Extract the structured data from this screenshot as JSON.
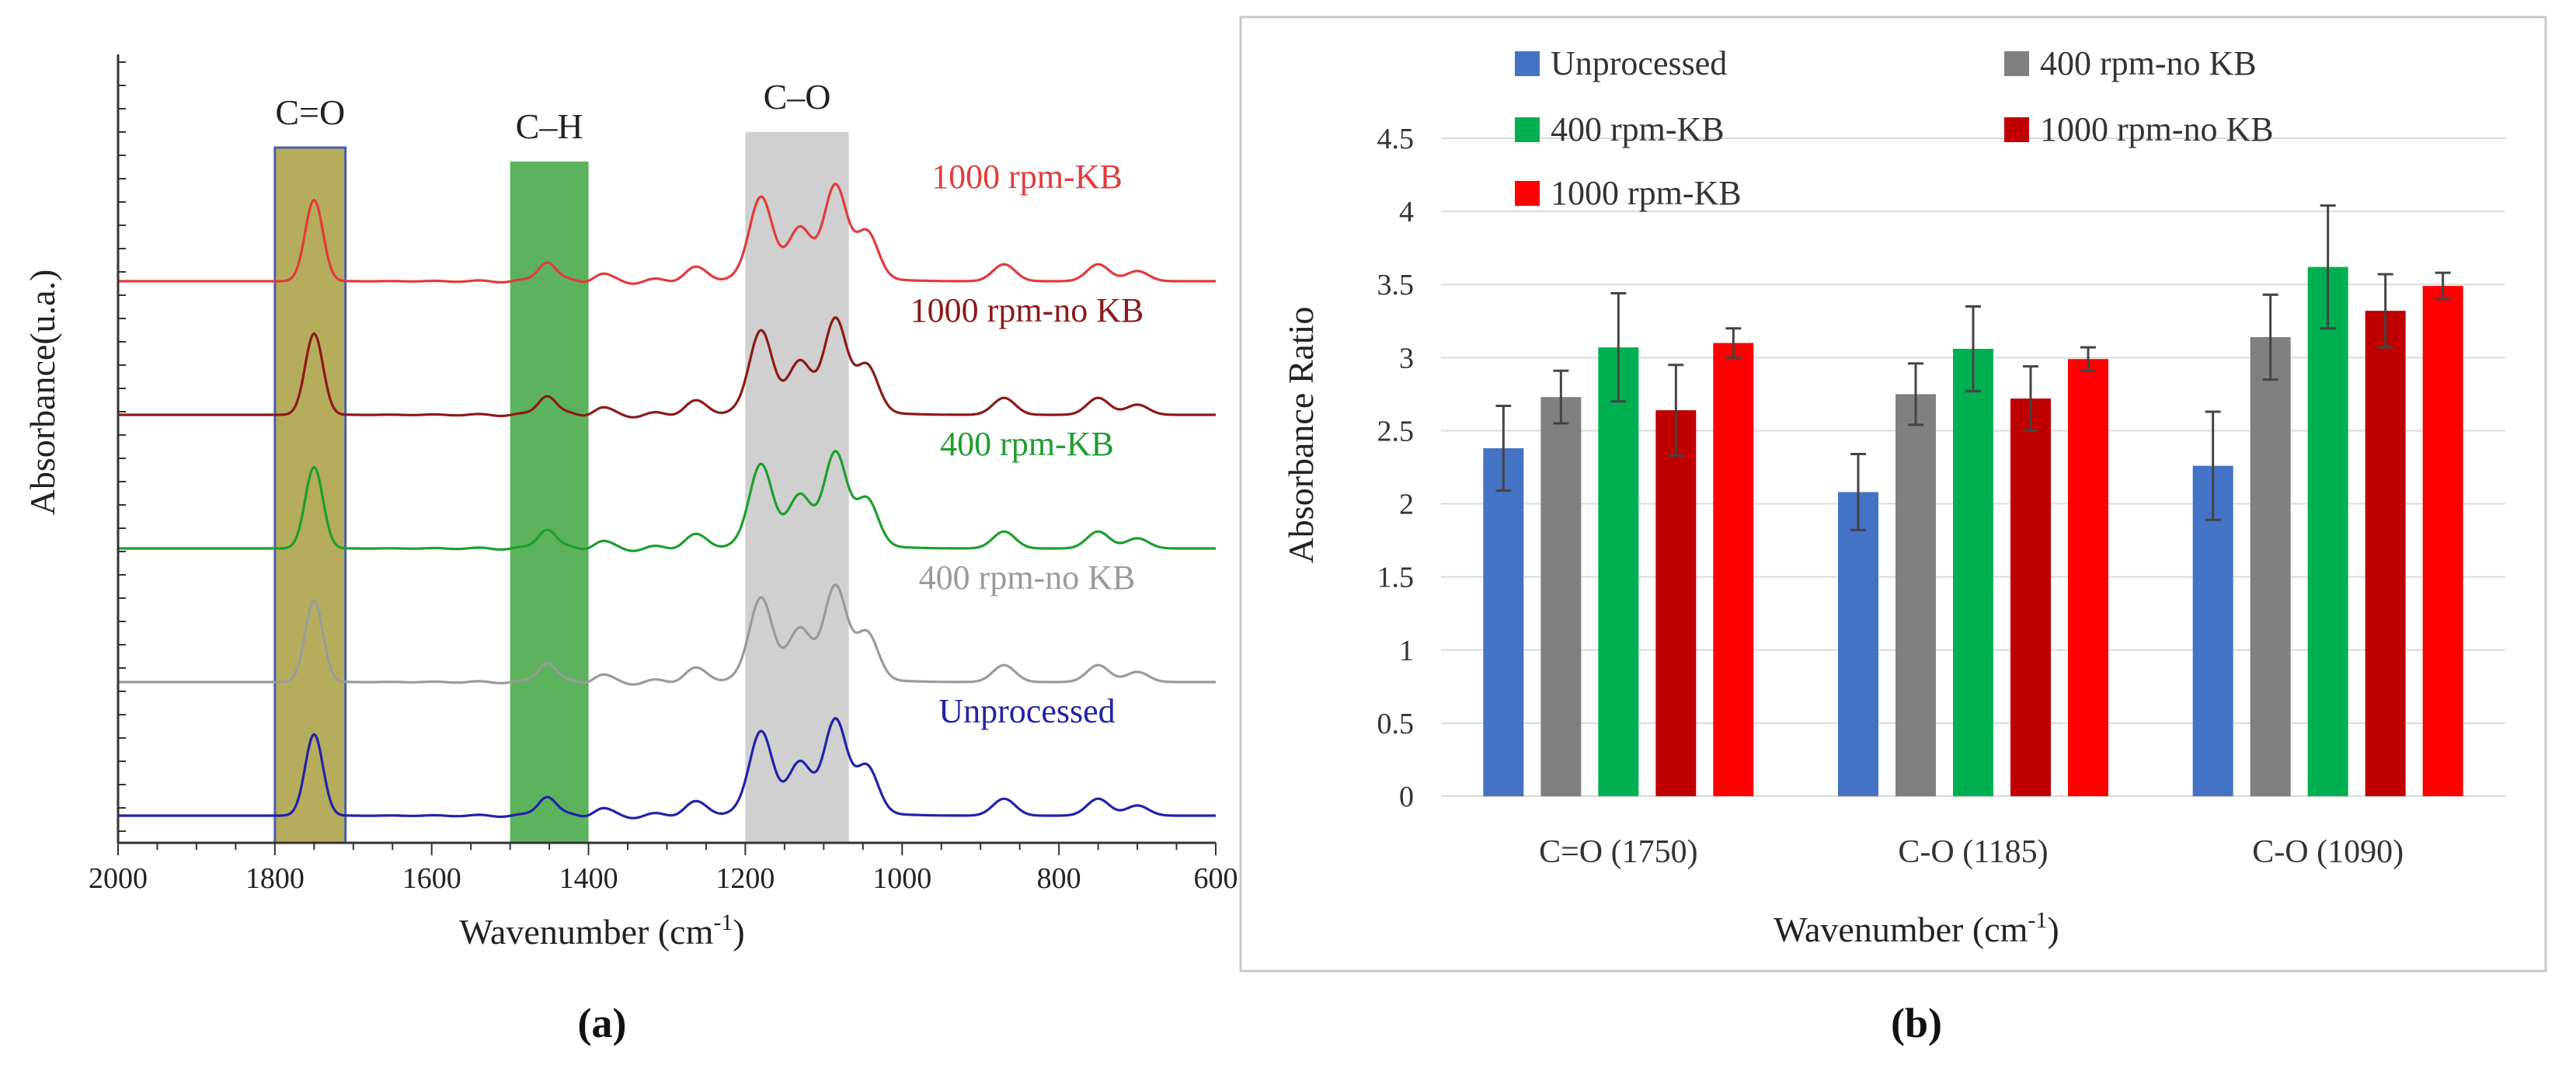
{
  "chart_data": [
    {
      "panel": "(a)",
      "type": "line",
      "xlabel_main": "Wavenumber (cm",
      "xlabel_sup": "-1",
      "xlabel_end": ")",
      "ylabel": "Absorbance(u.a.)",
      "xlim": [
        2000,
        600
      ],
      "xticks": [
        "2000",
        "1800",
        "1600",
        "1400",
        "1200",
        "1000",
        "800",
        "600"
      ],
      "bands": [
        {
          "label": "C=O",
          "from": 1800,
          "to": 1710,
          "color": "#b5ad5c"
        },
        {
          "label": "C–H",
          "from": 1500,
          "to": 1400,
          "color": "#5db35d"
        },
        {
          "label": "C–O",
          "from": 1200,
          "to": 1068,
          "color": "#d0d0d0"
        }
      ],
      "series": [
        {
          "name": "1000 rpm-KB",
          "color": "#e23b3b",
          "offset": 4
        },
        {
          "name": "1000 rpm-no KB",
          "color": "#8b1a1a",
          "offset": 3
        },
        {
          "name": "400 rpm-KB",
          "color": "#1e9e2e",
          "offset": 2
        },
        {
          "name": "400 rpm-no KB",
          "color": "#9a9a9a",
          "offset": 1
        },
        {
          "name": "Unprocessed",
          "color": "#2222aa",
          "offset": 0
        }
      ],
      "peaks": [
        {
          "x": 1750,
          "h": 0.48
        },
        {
          "x": 1453,
          "h": 0.12
        },
        {
          "x": 1385,
          "h": 0.04
        },
        {
          "x": 1265,
          "h": 0.07
        },
        {
          "x": 1180,
          "h": 0.46
        },
        {
          "x": 1130,
          "h": 0.26
        },
        {
          "x": 1085,
          "h": 0.52
        },
        {
          "x": 1045,
          "h": 0.27
        },
        {
          "x": 870,
          "h": 0.1
        },
        {
          "x": 750,
          "h": 0.1
        },
        {
          "x": 700,
          "h": 0.06
        }
      ]
    },
    {
      "panel": "(b)",
      "type": "bar",
      "categories": [
        "C=O (1750)",
        "C-O (1185)",
        "C-O (1090)"
      ],
      "series": [
        {
          "name": "Unprocessed",
          "color": "#4472c4",
          "values": [
            2.38,
            2.08,
            2.26
          ],
          "errors": [
            0.29,
            0.26,
            0.37
          ]
        },
        {
          "name": "400 rpm-no KB",
          "color": "#808080",
          "values": [
            2.73,
            2.75,
            3.14
          ],
          "errors": [
            0.18,
            0.21,
            0.29
          ]
        },
        {
          "name": "400 rpm-KB",
          "color": "#00b050",
          "values": [
            3.07,
            3.06,
            3.62
          ],
          "errors": [
            0.37,
            0.29,
            0.42
          ]
        },
        {
          "name": "1000 rpm-no KB",
          "color": "#c00000",
          "values": [
            2.64,
            2.72,
            3.32
          ],
          "errors": [
            0.31,
            0.22,
            0.25
          ]
        },
        {
          "name": "1000 rpm-KB",
          "color": "#ff0000",
          "values": [
            3.1,
            2.99,
            3.49
          ],
          "errors": [
            0.1,
            0.08,
            0.09
          ]
        }
      ],
      "ylim": [
        0,
        4.5
      ],
      "yticks": [
        "0",
        "0.5",
        "1",
        "1.5",
        "2",
        "2.5",
        "3",
        "3.5",
        "4",
        "4.5"
      ],
      "ylabel": "Absorbance Ratio",
      "xlabel_main": "Wavenumber (cm",
      "xlabel_sup": "-1",
      "xlabel_end": ")",
      "legend_position": "top"
    }
  ]
}
